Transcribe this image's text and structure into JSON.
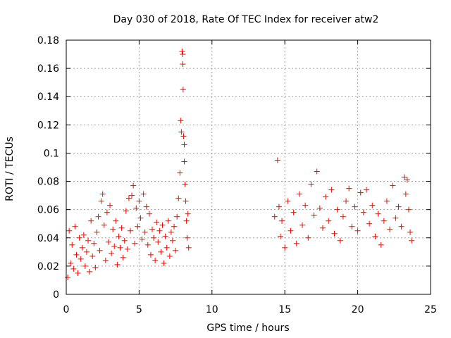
{
  "chart_data": {
    "type": "scatter",
    "title": "Day 030 of 2018, Rate Of TEC Index for receiver atw2",
    "xlabel": "GPS time / hours",
    "ylabel": "ROTI / TECUs",
    "xlim": [
      0,
      25
    ],
    "ylim": [
      0,
      0.18
    ],
    "xticks": [
      0,
      5,
      10,
      15,
      20,
      25
    ],
    "xtick_labels": [
      "0",
      "5",
      "10",
      "15",
      "20",
      "25"
    ],
    "yticks": [
      0,
      0.02,
      0.04,
      0.06,
      0.08,
      0.1,
      0.12,
      0.14,
      0.16,
      0.18
    ],
    "ytick_labels": [
      "0",
      "0.02",
      "0.04",
      "0.06",
      "0.08",
      "0.1",
      "0.12",
      "0.14",
      "0.16",
      "0.18"
    ],
    "grid": true,
    "marker": "plus",
    "color": "#ff0000",
    "series": [
      {
        "points": [
          [
            0.1,
            0.012
          ],
          [
            0.2,
            0.045
          ],
          [
            0.3,
            0.022
          ],
          [
            0.4,
            0.035
          ],
          [
            0.5,
            0.018
          ],
          [
            0.6,
            0.048
          ],
          [
            0.7,
            0.028
          ],
          [
            0.8,
            0.015
          ],
          [
            0.9,
            0.04
          ],
          [
            1.0,
            0.025
          ],
          [
            1.1,
            0.033
          ],
          [
            1.2,
            0.042
          ],
          [
            1.3,
            0.02
          ],
          [
            1.4,
            0.03
          ],
          [
            1.5,
            0.038
          ],
          [
            1.6,
            0.016
          ],
          [
            1.7,
            0.052
          ],
          [
            1.8,
            0.027
          ],
          [
            1.9,
            0.036
          ],
          [
            2.0,
            0.019
          ],
          [
            2.1,
            0.044
          ],
          [
            2.2,
            0.055
          ],
          [
            2.3,
            0.031
          ],
          [
            2.4,
            0.066
          ],
          [
            2.5,
            0.071
          ],
          [
            2.6,
            0.049
          ],
          [
            2.7,
            0.024
          ],
          [
            2.8,
            0.058
          ],
          [
            2.9,
            0.037
          ],
          [
            3.0,
            0.063
          ],
          [
            3.1,
            0.029
          ],
          [
            3.2,
            0.046
          ],
          [
            3.3,
            0.034
          ],
          [
            3.4,
            0.052
          ],
          [
            3.5,
            0.021
          ],
          [
            3.6,
            0.041
          ],
          [
            3.7,
            0.033
          ],
          [
            3.8,
            0.047
          ],
          [
            3.9,
            0.026
          ],
          [
            4.0,
            0.038
          ],
          [
            4.1,
            0.059
          ],
          [
            4.2,
            0.032
          ],
          [
            4.3,
            0.068
          ],
          [
            4.4,
            0.045
          ],
          [
            4.5,
            0.07
          ],
          [
            4.6,
            0.077
          ],
          [
            4.7,
            0.036
          ],
          [
            4.8,
            0.061
          ],
          [
            4.9,
            0.048
          ],
          [
            5.0,
            0.066
          ],
          [
            5.1,
            0.054
          ],
          [
            5.2,
            0.039
          ],
          [
            5.3,
            0.071
          ],
          [
            5.4,
            0.044
          ],
          [
            5.5,
            0.062
          ],
          [
            5.6,
            0.035
          ],
          [
            5.7,
            0.057
          ],
          [
            5.8,
            0.028
          ],
          [
            5.9,
            0.046
          ],
          [
            6.0,
            0.04
          ],
          [
            6.1,
            0.024
          ],
          [
            6.2,
            0.051
          ],
          [
            6.3,
            0.037
          ],
          [
            6.4,
            0.045
          ],
          [
            6.5,
            0.03
          ],
          [
            6.6,
            0.049
          ],
          [
            6.7,
            0.022
          ],
          [
            6.8,
            0.041
          ],
          [
            6.9,
            0.033
          ],
          [
            7.0,
            0.052
          ],
          [
            7.1,
            0.027
          ],
          [
            7.2,
            0.044
          ],
          [
            7.3,
            0.038
          ],
          [
            7.4,
            0.048
          ],
          [
            7.5,
            0.031
          ],
          [
            7.6,
            0.055
          ],
          [
            7.7,
            0.068
          ],
          [
            7.8,
            0.086
          ],
          [
            7.85,
            0.123
          ],
          [
            7.9,
            0.115
          ],
          [
            7.95,
            0.172
          ],
          [
            8.0,
            0.17
          ],
          [
            8.0,
            0.163
          ],
          [
            8.02,
            0.145
          ],
          [
            8.05,
            0.112
          ],
          [
            8.1,
            0.106
          ],
          [
            8.1,
            0.094
          ],
          [
            8.15,
            0.078
          ],
          [
            8.2,
            0.066
          ],
          [
            8.25,
            0.052
          ],
          [
            8.3,
            0.04
          ],
          [
            8.35,
            0.057
          ],
          [
            8.4,
            0.033
          ],
          [
            14.3,
            0.055
          ],
          [
            14.5,
            0.095
          ],
          [
            14.6,
            0.062
          ],
          [
            14.7,
            0.041
          ],
          [
            14.8,
            0.052
          ],
          [
            15.0,
            0.033
          ],
          [
            15.2,
            0.066
          ],
          [
            15.4,
            0.045
          ],
          [
            15.6,
            0.058
          ],
          [
            15.8,
            0.036
          ],
          [
            16.0,
            0.071
          ],
          [
            16.2,
            0.049
          ],
          [
            16.4,
            0.063
          ],
          [
            16.6,
            0.04
          ],
          [
            16.8,
            0.078
          ],
          [
            17.0,
            0.056
          ],
          [
            17.2,
            0.087
          ],
          [
            17.4,
            0.061
          ],
          [
            17.6,
            0.047
          ],
          [
            17.8,
            0.069
          ],
          [
            18.0,
            0.052
          ],
          [
            18.2,
            0.074
          ],
          [
            18.4,
            0.043
          ],
          [
            18.6,
            0.06
          ],
          [
            18.8,
            0.038
          ],
          [
            19.0,
            0.055
          ],
          [
            19.2,
            0.066
          ],
          [
            19.4,
            0.075
          ],
          [
            19.6,
            0.048
          ],
          [
            19.8,
            0.062
          ],
          [
            20.0,
            0.045
          ],
          [
            20.2,
            0.072
          ],
          [
            20.4,
            0.058
          ],
          [
            20.6,
            0.074
          ],
          [
            20.8,
            0.05
          ],
          [
            21.0,
            0.063
          ],
          [
            21.2,
            0.041
          ],
          [
            21.4,
            0.057
          ],
          [
            21.6,
            0.035
          ],
          [
            21.8,
            0.052
          ],
          [
            22.0,
            0.066
          ],
          [
            22.2,
            0.046
          ],
          [
            22.4,
            0.077
          ],
          [
            22.6,
            0.054
          ],
          [
            22.8,
            0.062
          ],
          [
            23.0,
            0.048
          ],
          [
            23.2,
            0.083
          ],
          [
            23.3,
            0.071
          ],
          [
            23.4,
            0.081
          ],
          [
            23.5,
            0.06
          ],
          [
            23.6,
            0.044
          ],
          [
            23.7,
            0.038
          ]
        ]
      }
    ]
  }
}
